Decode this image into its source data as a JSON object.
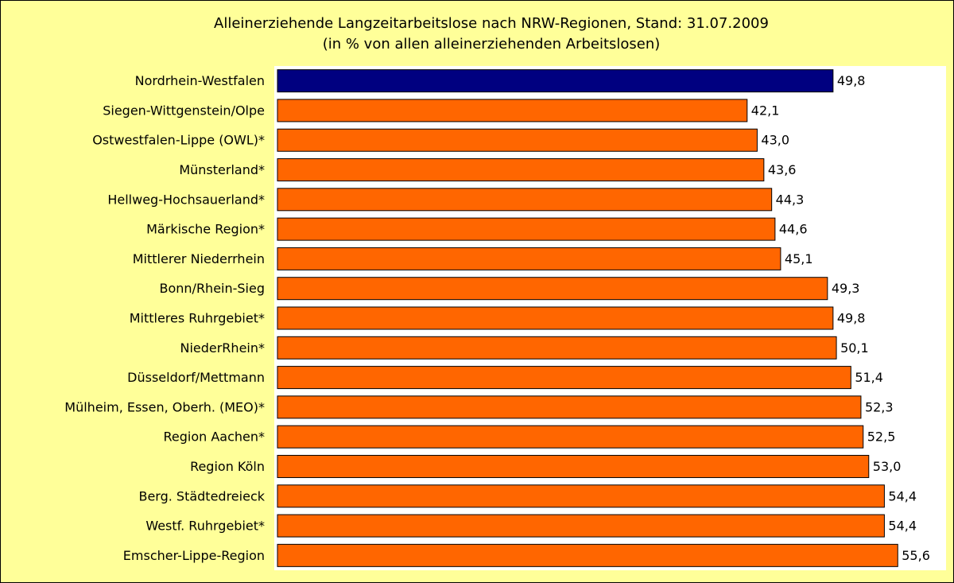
{
  "chart_data": {
    "type": "hbar",
    "title": "Alleinerziehende Langzeitarbeitslose nach NRW-Regionen, Stand: 31.07.2009",
    "subtitle": "(in % von allen alleinerziehenden Arbeitslosen)",
    "categories": [
      "Nordrhein-Westfalen",
      "Siegen-Wittgenstein/Olpe",
      "Ostwestfalen-Lippe (OWL)*",
      "Münsterland*",
      "Hellweg-Hochsauerland*",
      "Märkische Region*",
      "Mittlerer Niederrhein",
      "Bonn/Rhein-Sieg",
      "Mittleres Ruhrgebiet*",
      "NiederRhein*",
      "Düsseldorf/Mettmann",
      "Mülheim, Essen, Oberh. (MEO)*",
      "Region Aachen*",
      "Region Köln",
      "Berg. Städtedreieck",
      "Westf. Ruhrgebiet*",
      "Emscher-Lippe-Region"
    ],
    "values": [
      49.8,
      42.1,
      43.0,
      43.6,
      44.3,
      44.6,
      45.1,
      49.3,
      49.8,
      50.1,
      51.4,
      52.3,
      52.5,
      53.0,
      54.4,
      54.4,
      55.6
    ],
    "value_labels": [
      "49,8",
      "42,1",
      "43,0",
      "43,6",
      "44,3",
      "44,6",
      "45,1",
      "49,3",
      "49,8",
      "50,1",
      "51,4",
      "52,3",
      "52,5",
      "53,0",
      "54,4",
      "54,4",
      "55,6"
    ],
    "colors": [
      "#000080",
      "#ff6600",
      "#ff6600",
      "#ff6600",
      "#ff6600",
      "#ff6600",
      "#ff6600",
      "#ff6600",
      "#ff6600",
      "#ff6600",
      "#ff6600",
      "#ff6600",
      "#ff6600",
      "#ff6600",
      "#ff6600",
      "#ff6600",
      "#ff6600"
    ],
    "xlim": [
      0,
      60
    ]
  }
}
